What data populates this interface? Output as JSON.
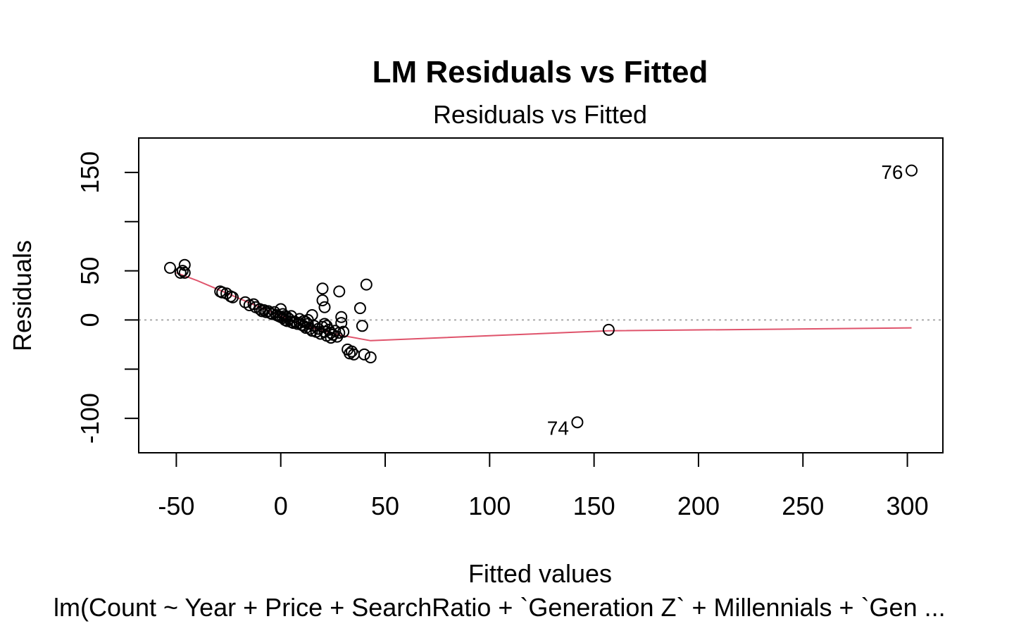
{
  "chart_data": {
    "type": "scatter",
    "title": "LM Residuals vs Fitted",
    "subtitle": "Residuals vs Fitted",
    "xlabel": "Fitted values",
    "ylabel": "Residuals",
    "caption": "lm(Count ~ Year + Price + SearchRatio + `Generation Z` + Millennials + `Gen ...",
    "xlim": [
      -68,
      317
    ],
    "ylim": [
      -135,
      185
    ],
    "x_ticks": [
      -50,
      0,
      50,
      100,
      150,
      200,
      250,
      300
    ],
    "x_tick_labels": [
      "-50",
      "0",
      "50",
      "100",
      "150",
      "200",
      "250",
      "300"
    ],
    "y_ticks": [
      -100,
      0,
      50,
      150
    ],
    "y_tick_labels": [
      "-100",
      "0",
      "50",
      "150"
    ],
    "y_tick_marks": [
      -100,
      -50,
      0,
      50,
      100,
      150
    ],
    "reference_line_y": 0,
    "grid": false,
    "points": [
      {
        "x": -53,
        "y": 53
      },
      {
        "x": -48,
        "y": 48
      },
      {
        "x": -47,
        "y": 50
      },
      {
        "x": -46,
        "y": 48
      },
      {
        "x": -46,
        "y": 56
      },
      {
        "x": -29,
        "y": 29
      },
      {
        "x": -28,
        "y": 28
      },
      {
        "x": -26,
        "y": 27
      },
      {
        "x": -24,
        "y": 24
      },
      {
        "x": -23,
        "y": 23
      },
      {
        "x": -17,
        "y": 18
      },
      {
        "x": -15,
        "y": 15
      },
      {
        "x": -13,
        "y": 16
      },
      {
        "x": -12,
        "y": 13
      },
      {
        "x": -10,
        "y": 11
      },
      {
        "x": -9,
        "y": 9
      },
      {
        "x": -8,
        "y": 10
      },
      {
        "x": -7,
        "y": 8
      },
      {
        "x": -6,
        "y": 9
      },
      {
        "x": -5,
        "y": 7
      },
      {
        "x": -4,
        "y": 6
      },
      {
        "x": -3,
        "y": 8
      },
      {
        "x": -2,
        "y": 5
      },
      {
        "x": -1,
        "y": 4
      },
      {
        "x": 0,
        "y": 3
      },
      {
        "x": 0,
        "y": 11
      },
      {
        "x": 1,
        "y": 2
      },
      {
        "x": 1,
        "y": 6
      },
      {
        "x": 2,
        "y": 0
      },
      {
        "x": 2,
        "y": 4
      },
      {
        "x": 3,
        "y": -1
      },
      {
        "x": 3,
        "y": 3
      },
      {
        "x": 4,
        "y": 1
      },
      {
        "x": 5,
        "y": -2
      },
      {
        "x": 5,
        "y": 4
      },
      {
        "x": 6,
        "y": -3
      },
      {
        "x": 7,
        "y": -2
      },
      {
        "x": 8,
        "y": -4
      },
      {
        "x": 9,
        "y": -3
      },
      {
        "x": 9,
        "y": 1
      },
      {
        "x": 10,
        "y": -5
      },
      {
        "x": 11,
        "y": -6
      },
      {
        "x": 11,
        "y": -1
      },
      {
        "x": 12,
        "y": -8
      },
      {
        "x": 12,
        "y": -2
      },
      {
        "x": 13,
        "y": -4
      },
      {
        "x": 13,
        "y": 0
      },
      {
        "x": 14,
        "y": -9
      },
      {
        "x": 15,
        "y": 5
      },
      {
        "x": 15,
        "y": -11
      },
      {
        "x": 16,
        "y": -6
      },
      {
        "x": 17,
        "y": -12
      },
      {
        "x": 18,
        "y": -9
      },
      {
        "x": 19,
        "y": -14
      },
      {
        "x": 20,
        "y": 32
      },
      {
        "x": 20,
        "y": -7
      },
      {
        "x": 20,
        "y": 20
      },
      {
        "x": 21,
        "y": -12
      },
      {
        "x": 21,
        "y": -4
      },
      {
        "x": 21,
        "y": 13
      },
      {
        "x": 22,
        "y": -16
      },
      {
        "x": 22,
        "y": -6
      },
      {
        "x": 23,
        "y": -10
      },
      {
        "x": 24,
        "y": -13
      },
      {
        "x": 24,
        "y": -18
      },
      {
        "x": 25,
        "y": -15
      },
      {
        "x": 26,
        "y": -11
      },
      {
        "x": 27,
        "y": -17
      },
      {
        "x": 28,
        "y": 29
      },
      {
        "x": 28,
        "y": -13
      },
      {
        "x": 29,
        "y": -3
      },
      {
        "x": 29,
        "y": 3
      },
      {
        "x": 30,
        "y": -12
      },
      {
        "x": 32,
        "y": -30
      },
      {
        "x": 33,
        "y": -34
      },
      {
        "x": 34,
        "y": -32
      },
      {
        "x": 35,
        "y": -35
      },
      {
        "x": 38,
        "y": 12
      },
      {
        "x": 39,
        "y": -6
      },
      {
        "x": 40,
        "y": -35
      },
      {
        "x": 41,
        "y": 36
      },
      {
        "x": 43,
        "y": -38
      },
      {
        "x": 157,
        "y": -10
      },
      {
        "x": 142,
        "y": -104
      },
      {
        "x": 302,
        "y": 152
      }
    ],
    "labeled_points": [
      {
        "label": "74",
        "x": 142,
        "y": -104
      },
      {
        "label": "76",
        "x": 302,
        "y": 152
      }
    ],
    "smooth_line": {
      "color": "#DF536B",
      "x": [
        -50,
        -40,
        -30,
        -20,
        -10,
        0,
        10,
        20,
        30,
        43,
        100,
        157,
        302
      ],
      "y": [
        48,
        40,
        31,
        22,
        13,
        4,
        -5,
        -11,
        -16,
        -21,
        -16,
        -11,
        -8
      ]
    },
    "colors": {
      "points": "#000000",
      "reference_line": "#AAAAAA",
      "smooth": "#DF536B"
    }
  }
}
